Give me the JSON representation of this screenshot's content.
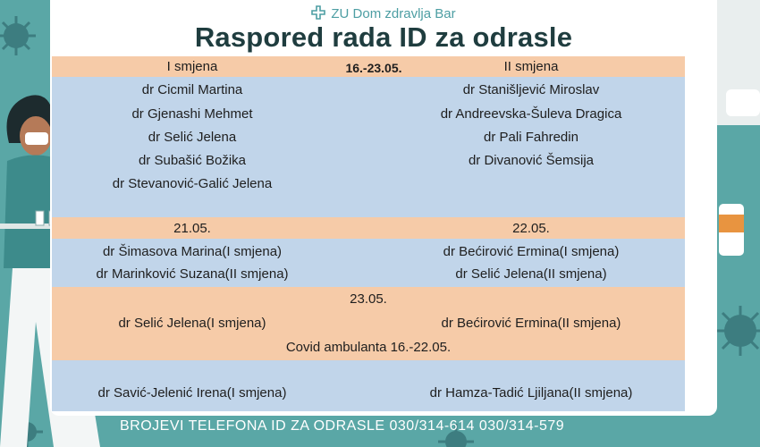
{
  "header": {
    "org": "ZU Dom zdravlja Bar",
    "title": "Raspored rada ID za odrasle"
  },
  "week": {
    "left_shift": "I smjena",
    "dates": "16.-23.05.",
    "right_shift": "II smjena",
    "left_doctors": [
      "dr Cicmil Martina",
      "dr Gjenashi Mehmet",
      "dr Selić Jelena",
      "dr Subašić Božika",
      "dr Stevanović-Galić Jelena"
    ],
    "right_doctors": [
      "dr Stanišljević Miroslav",
      "dr Andreevska-Šuleva Dragica",
      "dr Pali Fahredin",
      "dr Divanović Šemsija"
    ]
  },
  "days": {
    "left_date": "21.05.",
    "right_date": "22.05.",
    "left_doctors": [
      "dr Šimasova Marina(I smjena)",
      "dr Marinković Suzana(II smjena)"
    ],
    "right_doctors": [
      "dr Bećirović Ermina(I smjena)",
      "dr Selić Jelena(II smjena)"
    ]
  },
  "day23": {
    "date": "23.05.",
    "left": "dr Selić Jelena(I smjena)",
    "right": "dr Bećirović Ermina(II smjena)"
  },
  "covid": {
    "label": "Covid ambulanta 16.-22.05.",
    "left": "dr Savić-Jelenić Irena(I smjena)",
    "right": "dr Hamza-Tadić Ljiljana(II smjena)"
  },
  "footer": {
    "phones": "BROJEVI TELEFONA ID ZA ODRASLE 030/314-614  030/314-579"
  },
  "colors": {
    "background": "#5aa7a6",
    "peach": "#f6cba8",
    "blue": "#c1d5ea",
    "title": "#1f3d3f"
  }
}
